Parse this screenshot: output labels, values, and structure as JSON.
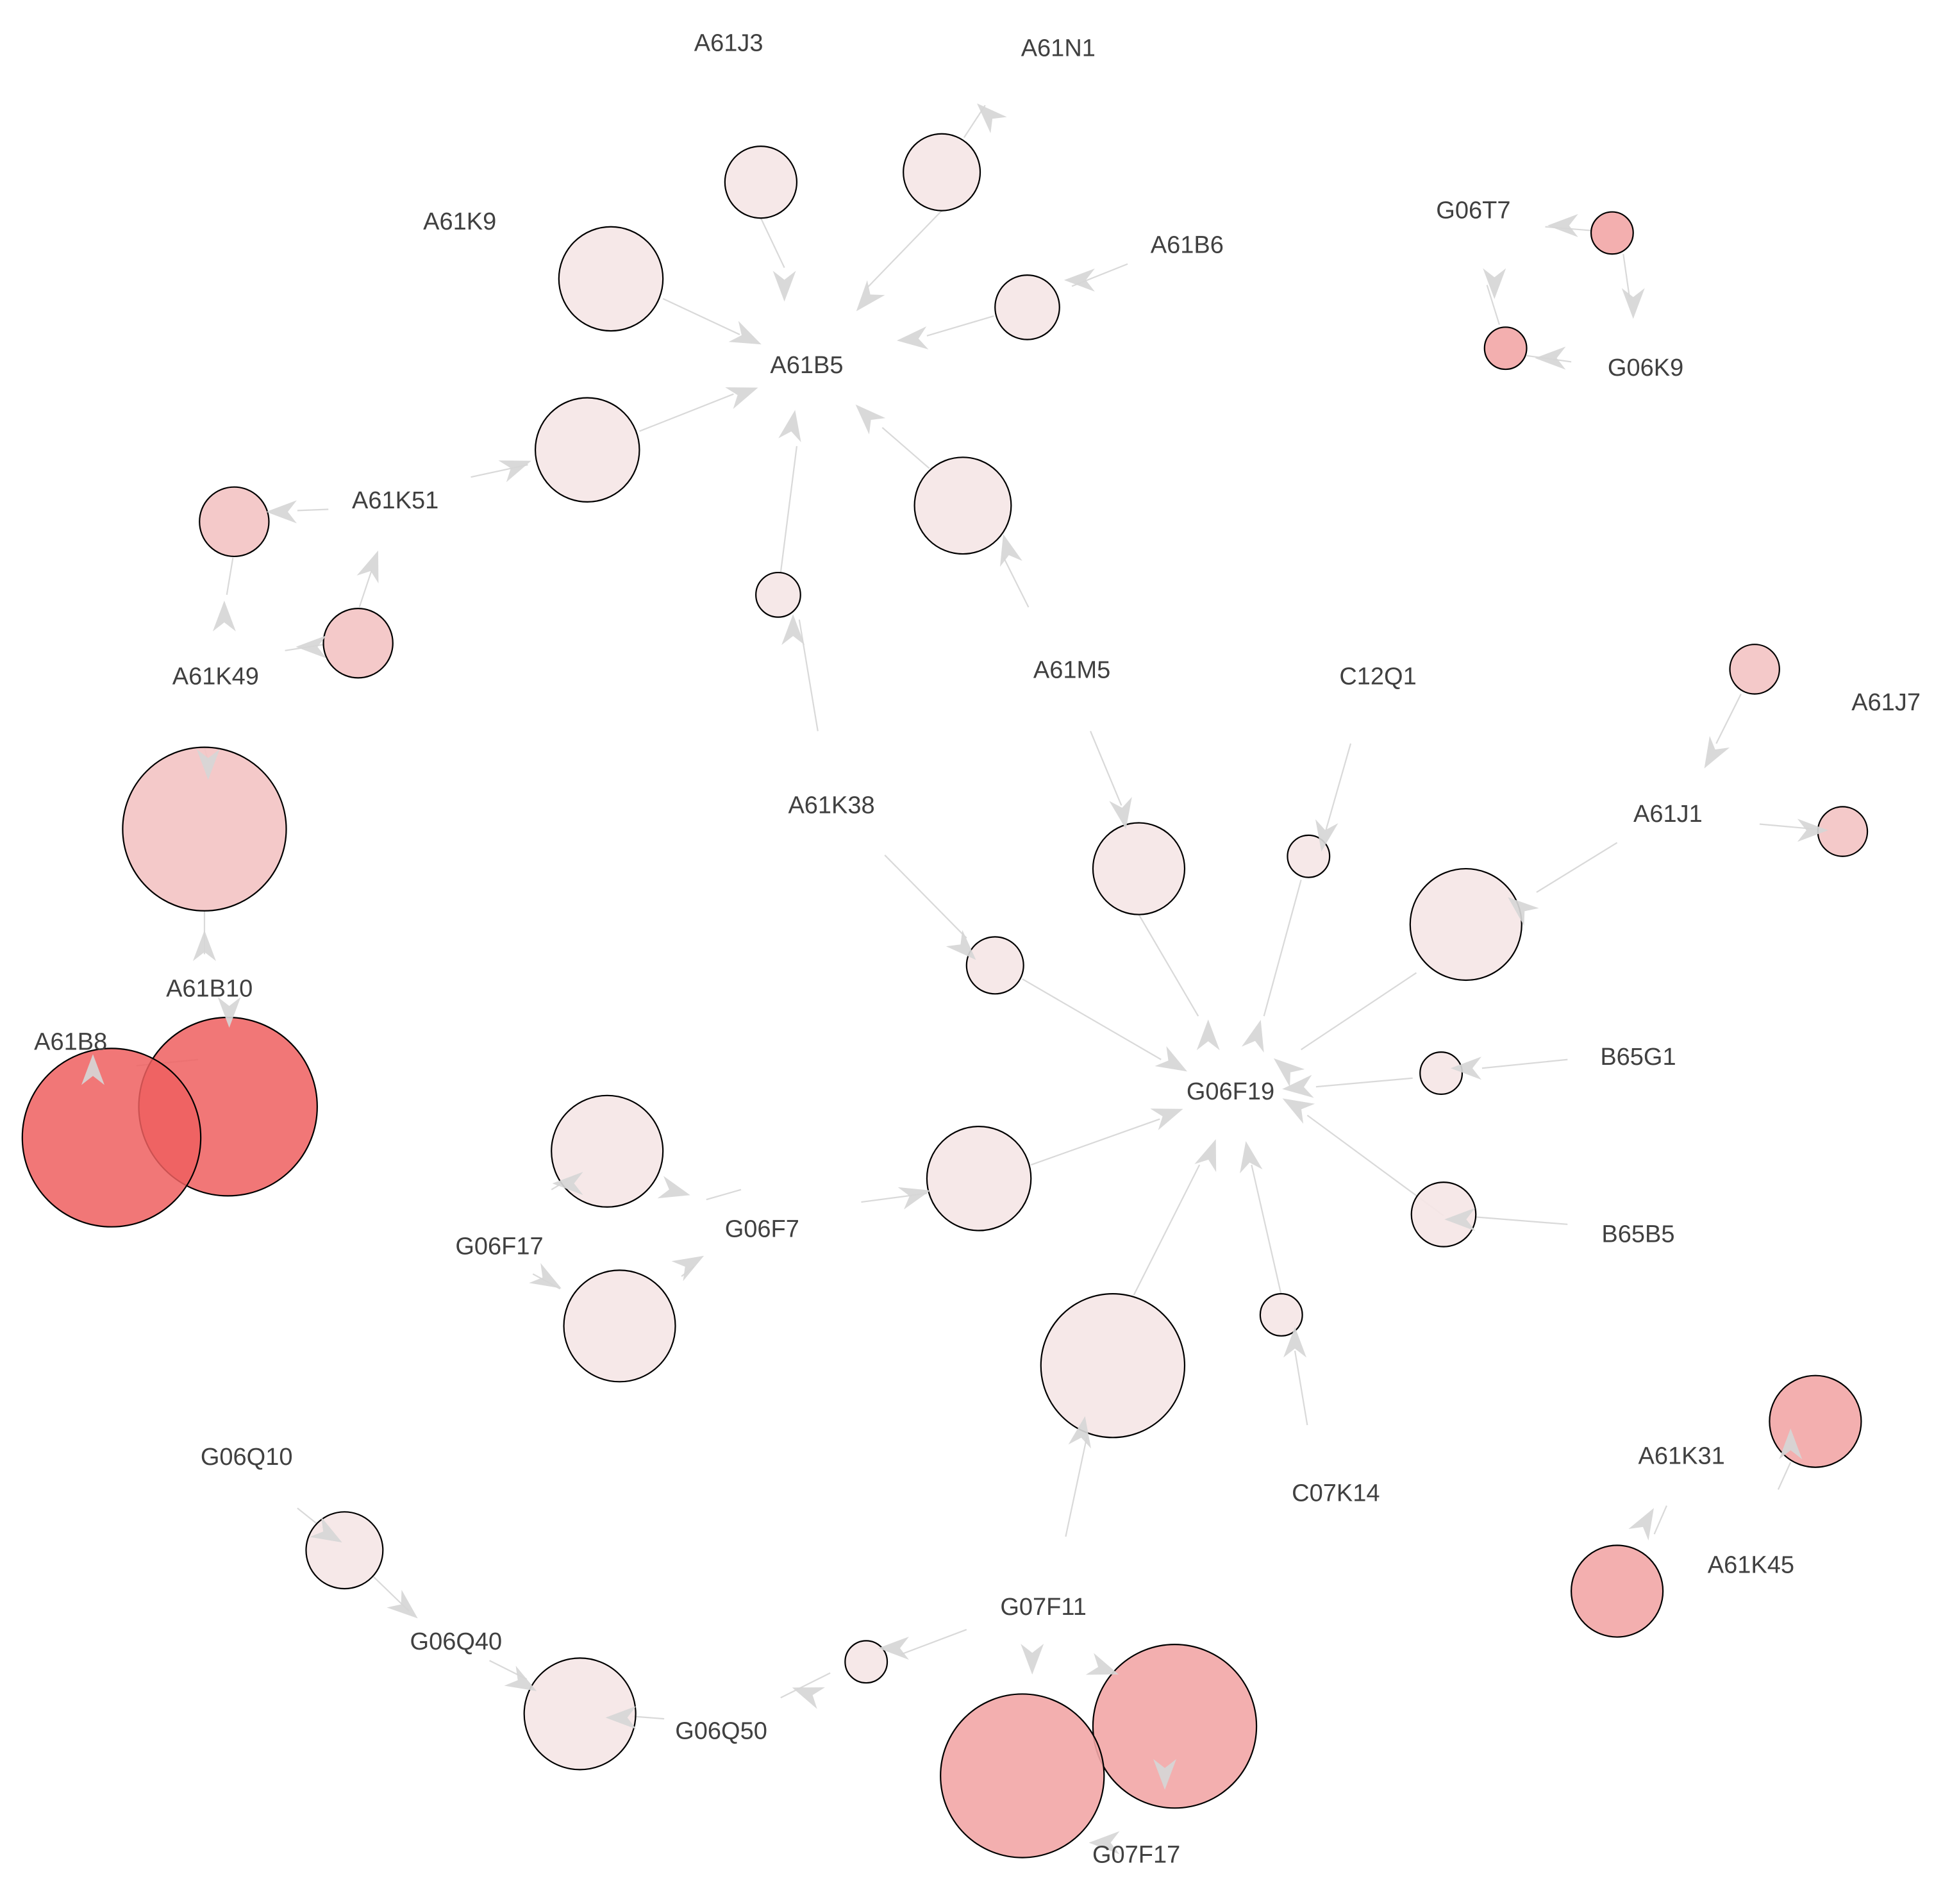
{
  "diagram": {
    "type": "directed-network-graph",
    "node_labels": [
      {
        "id": "A61J3",
        "text": "A61J3"
      },
      {
        "id": "A61N1",
        "text": "A61N1"
      },
      {
        "id": "A61K9",
        "text": "A61K9"
      },
      {
        "id": "A61B6",
        "text": "A61B6"
      },
      {
        "id": "A61B5",
        "text": "A61B5"
      },
      {
        "id": "G06T7",
        "text": "G06T7"
      },
      {
        "id": "G06K9",
        "text": "G06K9"
      },
      {
        "id": "A61K51",
        "text": "A61K51"
      },
      {
        "id": "A61K49",
        "text": "A61K49"
      },
      {
        "id": "A61M5",
        "text": "A61M5"
      },
      {
        "id": "C12Q1",
        "text": "C12Q1"
      },
      {
        "id": "A61J7",
        "text": "A61J7"
      },
      {
        "id": "A61K38",
        "text": "A61K38"
      },
      {
        "id": "A61J1",
        "text": "A61J1"
      },
      {
        "id": "A61B10",
        "text": "A61B10"
      },
      {
        "id": "A61B8",
        "text": "A61B8"
      },
      {
        "id": "G06F19",
        "text": "G06F19"
      },
      {
        "id": "B65G1",
        "text": "B65G1"
      },
      {
        "id": "G06F7",
        "text": "G06F7"
      },
      {
        "id": "G06F17",
        "text": "G06F17"
      },
      {
        "id": "B65B5",
        "text": "B65B5"
      },
      {
        "id": "G06Q10",
        "text": "G06Q10"
      },
      {
        "id": "A61K31",
        "text": "A61K31"
      },
      {
        "id": "C07K14",
        "text": "C07K14"
      },
      {
        "id": "A61K45",
        "text": "A61K45"
      },
      {
        "id": "G07F11",
        "text": "G07F11"
      },
      {
        "id": "G06Q40",
        "text": "G06Q40"
      },
      {
        "id": "G06Q50",
        "text": "G06Q50"
      },
      {
        "id": "G07F17",
        "text": "G07F17"
      }
    ],
    "edges": [
      {
        "from": "A61J3",
        "to": "A61B5"
      },
      {
        "from": "A61N1",
        "to": "A61B5"
      },
      {
        "from": "A61K9",
        "to": "A61B5"
      },
      {
        "from": "A61B6",
        "to": "A61B5"
      },
      {
        "from": "A61K51",
        "to": "A61B5"
      },
      {
        "from": "A61M5",
        "to": "A61B5"
      },
      {
        "from": "A61K38",
        "to": "A61B5"
      },
      {
        "from": "A61K51",
        "to": "A61K49"
      },
      {
        "from": "A61K49",
        "to": "A61K51"
      },
      {
        "from": "G06T7",
        "to": "G06K9"
      },
      {
        "from": "G06K9",
        "to": "G06T7"
      },
      {
        "from": "A61J7",
        "to": "A61J1"
      },
      {
        "from": "A61J1",
        "to": "A61J7"
      },
      {
        "from": "A61B10",
        "to": "A61B8"
      },
      {
        "from": "A61B8",
        "to": "A61B10"
      },
      {
        "from": "A61M5",
        "to": "G06F19"
      },
      {
        "from": "C12Q1",
        "to": "G06F19"
      },
      {
        "from": "A61J1",
        "to": "G06F19"
      },
      {
        "from": "A61K38",
        "to": "G06F19"
      },
      {
        "from": "B65G1",
        "to": "G06F19"
      },
      {
        "from": "B65B5",
        "to": "G06F19"
      },
      {
        "from": "G06F7",
        "to": "G06F19"
      },
      {
        "from": "C07K14",
        "to": "G06F19"
      },
      {
        "from": "G07F11",
        "to": "G06F19"
      },
      {
        "from": "G06F7",
        "to": "G06F17"
      },
      {
        "from": "G06F17",
        "to": "G06F7"
      },
      {
        "from": "A61K31",
        "to": "A61K45"
      },
      {
        "from": "A61K45",
        "to": "A61K31"
      },
      {
        "from": "G06Q10",
        "to": "G06Q40"
      },
      {
        "from": "G06Q40",
        "to": "G06Q10"
      },
      {
        "from": "G06Q50",
        "to": "G06Q40"
      },
      {
        "from": "G07F11",
        "to": "G06Q50"
      },
      {
        "from": "G07F11",
        "to": "G07F17"
      },
      {
        "from": "G07F17",
        "to": "G07F11"
      }
    ],
    "colors": {
      "edge": "#d9d9d9",
      "arrow": "#d6d6d6",
      "node_stroke": "#000000",
      "label": "#404040",
      "node_fill_pale": "#f5e6e6",
      "node_fill_light": "#f3c3c3",
      "node_fill_medium": "#f2a6a6",
      "node_fill_strong": "#ef5f5f"
    }
  }
}
